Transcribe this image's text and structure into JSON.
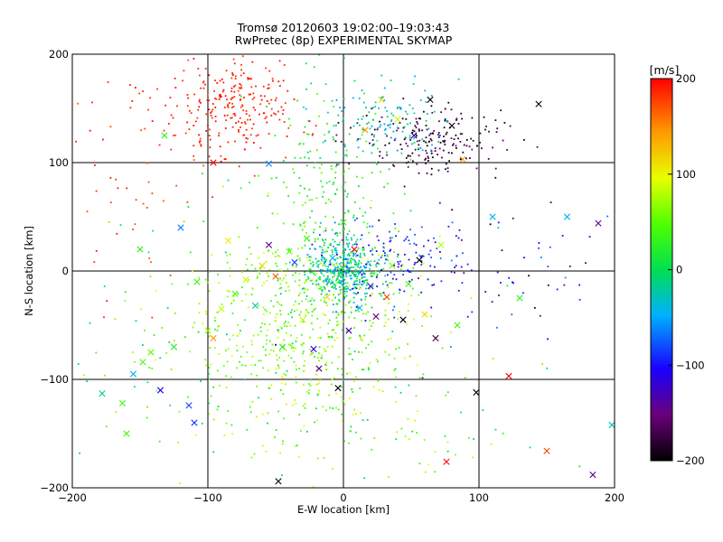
{
  "chart_data": {
    "type": "scatter",
    "title": "Tromsø 20120603 19:02:00–19:03:43",
    "subtitle": "RwPretec (8p) EXPERIMENTAL SKYMAP",
    "xlabel": "E-W location [km]",
    "ylabel": "N-S location [km]",
    "xlim": [
      -200,
      200
    ],
    "ylim": [
      -200,
      200
    ],
    "xticks": [
      -200,
      -100,
      0,
      100,
      200
    ],
    "yticks": [
      -200,
      -100,
      0,
      100,
      200
    ],
    "grid": true,
    "colorbar": {
      "label": "[m/s]",
      "range": [
        -200,
        200
      ],
      "ticks": [
        200,
        100,
        0,
        -100,
        -200
      ],
      "colormap": "rainbow black-purple-blue-cyan-green-yellow-red"
    },
    "marker_note": "dots and x markers colored by velocity",
    "series": [
      {
        "marker": "x",
        "points": [
          [
            -178,
            -113,
            -20
          ],
          [
            -163,
            -122,
            40
          ],
          [
            -155,
            -95,
            -40
          ],
          [
            -148,
            -84,
            40
          ],
          [
            -142,
            -75,
            50
          ],
          [
            -135,
            -110,
            -100
          ],
          [
            -125,
            -70,
            20
          ],
          [
            -120,
            40,
            -60
          ],
          [
            -114,
            -124,
            -80
          ],
          [
            -108,
            -10,
            40
          ],
          [
            -100,
            -55,
            70
          ],
          [
            -96,
            -62,
            150
          ],
          [
            -90,
            -35,
            90
          ],
          [
            -85,
            28,
            110
          ],
          [
            -80,
            -21,
            40
          ],
          [
            -72,
            -8,
            90
          ],
          [
            -65,
            -32,
            -20
          ],
          [
            -60,
            5,
            120
          ],
          [
            -55,
            24,
            -140
          ],
          [
            -50,
            -5,
            170
          ],
          [
            -45,
            -70,
            20
          ],
          [
            -40,
            18,
            50
          ],
          [
            -36,
            8,
            -80
          ],
          [
            -30,
            -45,
            90
          ],
          [
            -27,
            30,
            40
          ],
          [
            -22,
            -72,
            -110
          ],
          [
            -18,
            -90,
            -160
          ],
          [
            -12,
            -24,
            120
          ],
          [
            -8,
            12,
            -40
          ],
          [
            -4,
            -108,
            -200
          ],
          [
            0,
            45,
            30
          ],
          [
            4,
            -55,
            -130
          ],
          [
            8,
            20,
            200
          ],
          [
            12,
            -34,
            -40
          ],
          [
            16,
            130,
            150
          ],
          [
            20,
            -14,
            -110
          ],
          [
            24,
            -42,
            -150
          ],
          [
            28,
            158,
            120
          ],
          [
            32,
            -24,
            180
          ],
          [
            36,
            5,
            60
          ],
          [
            40,
            140,
            90
          ],
          [
            44,
            -45,
            -200
          ],
          [
            48,
            -12,
            40
          ],
          [
            52,
            125,
            -120
          ],
          [
            56,
            10,
            -200
          ],
          [
            60,
            -40,
            120
          ],
          [
            64,
            158,
            -200
          ],
          [
            68,
            -62,
            -170
          ],
          [
            72,
            24,
            80
          ],
          [
            76,
            -176,
            200
          ],
          [
            80,
            134,
            -200
          ],
          [
            84,
            -50,
            40
          ],
          [
            88,
            103,
            150
          ],
          [
            98,
            -112,
            -200
          ],
          [
            110,
            50,
            -40
          ],
          [
            122,
            -97,
            200
          ],
          [
            130,
            -25,
            30
          ],
          [
            144,
            154,
            -200
          ],
          [
            150,
            -166,
            180
          ],
          [
            165,
            50,
            -40
          ],
          [
            184,
            -188,
            -140
          ],
          [
            188,
            44,
            -140
          ],
          [
            198,
            -142,
            -30
          ],
          [
            -150,
            20,
            30
          ],
          [
            -160,
            -150,
            40
          ],
          [
            -132,
            125,
            30
          ],
          [
            -96,
            100,
            200
          ],
          [
            -55,
            99,
            -60
          ],
          [
            -48,
            -194,
            -200
          ],
          [
            -110,
            -140,
            -80
          ]
        ]
      }
    ]
  }
}
